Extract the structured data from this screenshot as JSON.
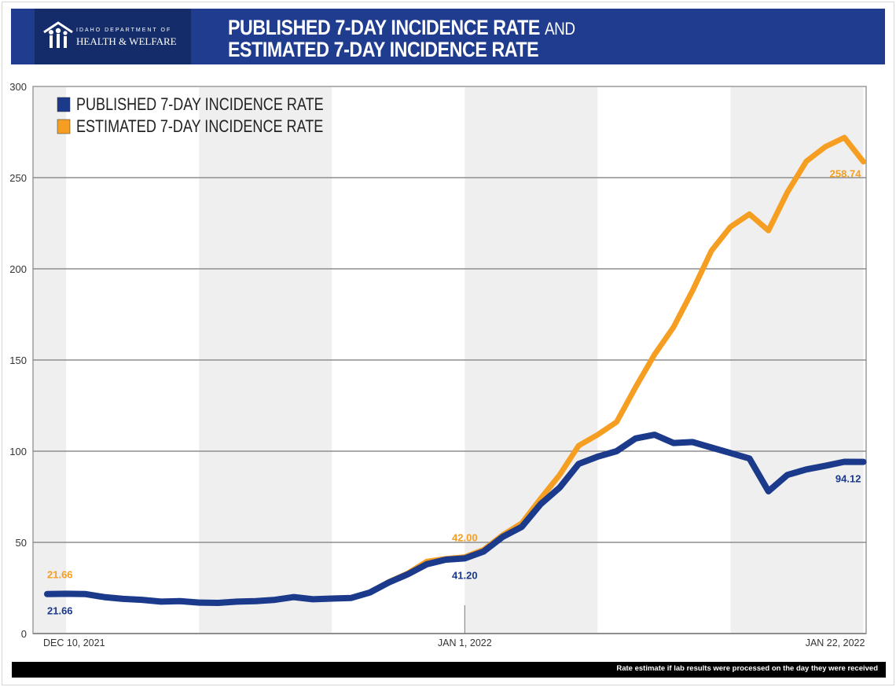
{
  "header": {
    "logo_line1": "IDAHO DEPARTMENT OF",
    "logo_line2": "HEALTH & WELFARE",
    "title_line1": "PUBLISHED 7-DAY INCIDENCE RATE",
    "title_and": "AND",
    "title_line2": "ESTIMATED 7-DAY INCIDENCE RATE"
  },
  "footer": {
    "note": "Rate estimate if lab results were processed on the day they were received"
  },
  "chart_data": {
    "type": "line",
    "title": "PUBLISHED 7-DAY INCIDENCE RATE AND ESTIMATED 7-DAY INCIDENCE RATE",
    "xlabel": "",
    "ylabel": "",
    "ylim": [
      0,
      300
    ],
    "yticks": [
      0,
      50,
      100,
      150,
      200,
      250,
      300
    ],
    "x_start": "2021-12-10",
    "x_end": "2022-01-22",
    "xtick_labels": [
      {
        "date": "2021-12-10",
        "label": "DEC 10, 2021"
      },
      {
        "date": "2022-01-01",
        "label": "JAN 1, 2022"
      },
      {
        "date": "2022-01-22",
        "label": "JAN 22, 2022"
      }
    ],
    "grid": "horizontal",
    "shaded_weeks": [
      "2021-12-04",
      "2021-12-18",
      "2022-01-01",
      "2022-01-15"
    ],
    "legend_position": "top-left",
    "series": [
      {
        "name": "PUBLISHED 7-DAY INCIDENCE RATE",
        "color": "#1b3a8c",
        "values": [
          21.66,
          21.8,
          21.7,
          20,
          19,
          18.5,
          17.5,
          17.8,
          17,
          16.8,
          17.5,
          17.8,
          18.5,
          20,
          18.8,
          19.2,
          19.5,
          22.5,
          28,
          32.5,
          38,
          40.5,
          41.2,
          45,
          53,
          58.5,
          71,
          80,
          93,
          97,
          100,
          107,
          109,
          104.5,
          105,
          102,
          99,
          96,
          78,
          87,
          90,
          92,
          94.2,
          94.12
        ],
        "labels": [
          {
            "index": 0,
            "text": "21.66"
          },
          {
            "index": 22,
            "text": "41.20"
          },
          {
            "index": 43,
            "text": "94.12"
          }
        ]
      },
      {
        "name": "ESTIMATED 7-DAY INCIDENCE RATE",
        "color": "#f59e22",
        "values": [
          21.66,
          21.8,
          21.7,
          20,
          19,
          18.5,
          17.5,
          17.8,
          17,
          16.8,
          17.5,
          17.8,
          18.5,
          20,
          18.8,
          19.2,
          19.5,
          22.5,
          28.3,
          33,
          39.5,
          41,
          42,
          46,
          54,
          60.5,
          74,
          87,
          103,
          109,
          116,
          135,
          153,
          168,
          188,
          210,
          223,
          230,
          221,
          242,
          259,
          267,
          272,
          258.74
        ],
        "labels": [
          {
            "index": 0,
            "text": "21.66"
          },
          {
            "index": 22,
            "text": "42.00"
          },
          {
            "index": 43,
            "text": "258.74"
          }
        ]
      }
    ]
  }
}
